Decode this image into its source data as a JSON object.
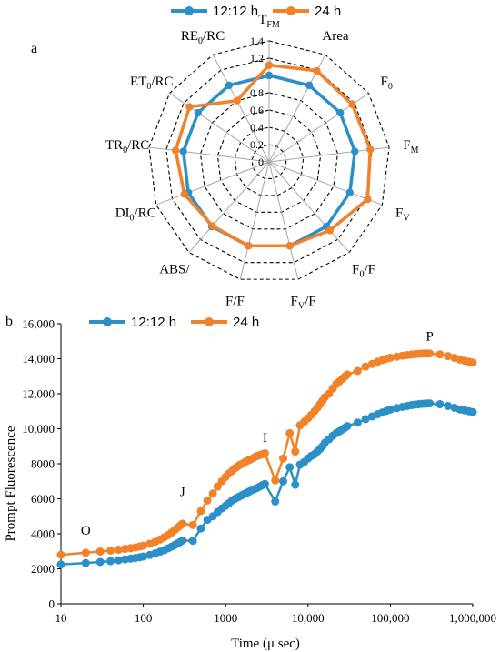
{
  "colors": {
    "series1": "#2b8fc8",
    "series2": "#f2822a",
    "grid": "#000000",
    "spoke": "#a6a6a6"
  },
  "chart_data": [
    {
      "panel_label": "a",
      "type": "radar",
      "legend": [
        "12:12 h",
        "24 h"
      ],
      "legend_position": "top",
      "axes": [
        "T",
        "Area",
        "F",
        "F",
        "F",
        "F/F",
        "F/F",
        "F/F",
        "ABS/",
        "DI/RC",
        "TR/RC",
        "ET/RC",
        "RE/RC"
      ],
      "axis_subscripts": [
        "FM",
        "",
        "0",
        "M",
        "V",
        "0",
        "V",
        "",
        "",
        "0",
        "0",
        "0",
        "0"
      ],
      "r_ticks": [
        "0",
        "0.2",
        "0.4",
        "0.6",
        "0.8",
        "1",
        "1.2",
        "1.4"
      ],
      "rlim": [
        0,
        1.4
      ],
      "series": [
        {
          "name": "12:12 h",
          "values": [
            1.0,
            1.0,
            1.0,
            1.0,
            1.0,
            1.0,
            1.0,
            1.0,
            1.0,
            1.0,
            1.0,
            1.0,
            1.0
          ]
        },
        {
          "name": "24 h",
          "values": [
            1.12,
            1.19,
            1.17,
            1.18,
            1.22,
            1.06,
            1.0,
            1.0,
            0.99,
            1.05,
            1.09,
            1.12,
            0.8
          ]
        }
      ]
    },
    {
      "panel_label": "b",
      "type": "line",
      "xscale": "log",
      "xlabel": "Time (μ sec)",
      "ylabel": "Prompt Fluorescence",
      "xlim": [
        10,
        1000000
      ],
      "ylim": [
        0,
        16000
      ],
      "x_ticks": [
        "10",
        "100",
        "1000",
        "10,000",
        "100,000",
        "1,000,000"
      ],
      "y_ticks": [
        "0",
        "2000",
        "4000",
        "6000",
        "8000",
        "10,000",
        "12,000",
        "14,000",
        "16,000"
      ],
      "legend_position": "top",
      "annotations": [
        {
          "text": "O",
          "x": 20,
          "y": 3950
        },
        {
          "text": "J",
          "x": 300,
          "y": 6150
        },
        {
          "text": "I",
          "x": 3000,
          "y": 9250
        },
        {
          "text": "P",
          "x": 300000,
          "y": 15050
        }
      ],
      "x": [
        10,
        20,
        30,
        40,
        50,
        60,
        70,
        80,
        90,
        100,
        120,
        140,
        160,
        180,
        200,
        220,
        240,
        260,
        280,
        300,
        400,
        500,
        600,
        700,
        800,
        900,
        1000,
        1100,
        1200,
        1300,
        1400,
        1500,
        1600,
        1700,
        1800,
        1900,
        2000,
        2200,
        2400,
        2600,
        2800,
        3000,
        4000,
        5000,
        6000,
        7000,
        8000,
        9000,
        10000,
        11000,
        12000,
        13000,
        14000,
        15000,
        16000,
        18000,
        20000,
        22000,
        24000,
        26000,
        28000,
        30000,
        40000,
        50000,
        60000,
        70000,
        80000,
        90000,
        100000,
        120000,
        140000,
        160000,
        180000,
        200000,
        220000,
        240000,
        260000,
        280000,
        300000,
        400000,
        500000,
        600000,
        700000,
        800000,
        900000,
        1000000
      ],
      "series": [
        {
          "name": "12:12 h",
          "values": [
            2250,
            2330,
            2390,
            2440,
            2490,
            2540,
            2580,
            2620,
            2660,
            2700,
            2790,
            2880,
            2980,
            3070,
            3170,
            3260,
            3350,
            3440,
            3530,
            3620,
            3600,
            4300,
            4800,
            5000,
            5250,
            5450,
            5600,
            5750,
            5900,
            6000,
            6080,
            6150,
            6220,
            6280,
            6340,
            6390,
            6450,
            6530,
            6620,
            6700,
            6780,
            6850,
            5850,
            7000,
            7800,
            6800,
            7950,
            8100,
            8300,
            8450,
            8550,
            8700,
            8850,
            9000,
            9200,
            9400,
            9600,
            9750,
            9850,
            9950,
            10050,
            10150,
            10350,
            10550,
            10700,
            10830,
            10930,
            11020,
            11100,
            11180,
            11250,
            11300,
            11350,
            11380,
            11400,
            11420,
            11430,
            11440,
            11450,
            11400,
            11300,
            11200,
            11100,
            11050,
            11000,
            10950
          ]
        },
        {
          "name": "24 h",
          "values": [
            2800,
            2920,
            2990,
            3040,
            3090,
            3140,
            3180,
            3220,
            3270,
            3320,
            3430,
            3540,
            3670,
            3800,
            3930,
            4070,
            4210,
            4350,
            4470,
            4580,
            4500,
            5300,
            5900,
            6300,
            6700,
            7000,
            7250,
            7450,
            7600,
            7750,
            7850,
            7950,
            8000,
            8080,
            8150,
            8200,
            8250,
            8350,
            8450,
            8500,
            8550,
            8600,
            7050,
            8300,
            9750,
            8700,
            10200,
            10400,
            10600,
            10800,
            11000,
            11200,
            11400,
            11600,
            11800,
            12000,
            12300,
            12550,
            12700,
            12850,
            12980,
            13100,
            13300,
            13550,
            13700,
            13830,
            13920,
            14000,
            14060,
            14120,
            14170,
            14210,
            14240,
            14260,
            14280,
            14290,
            14300,
            14300,
            14300,
            14250,
            14150,
            14050,
            13950,
            13880,
            13830,
            13780
          ]
        }
      ]
    }
  ]
}
